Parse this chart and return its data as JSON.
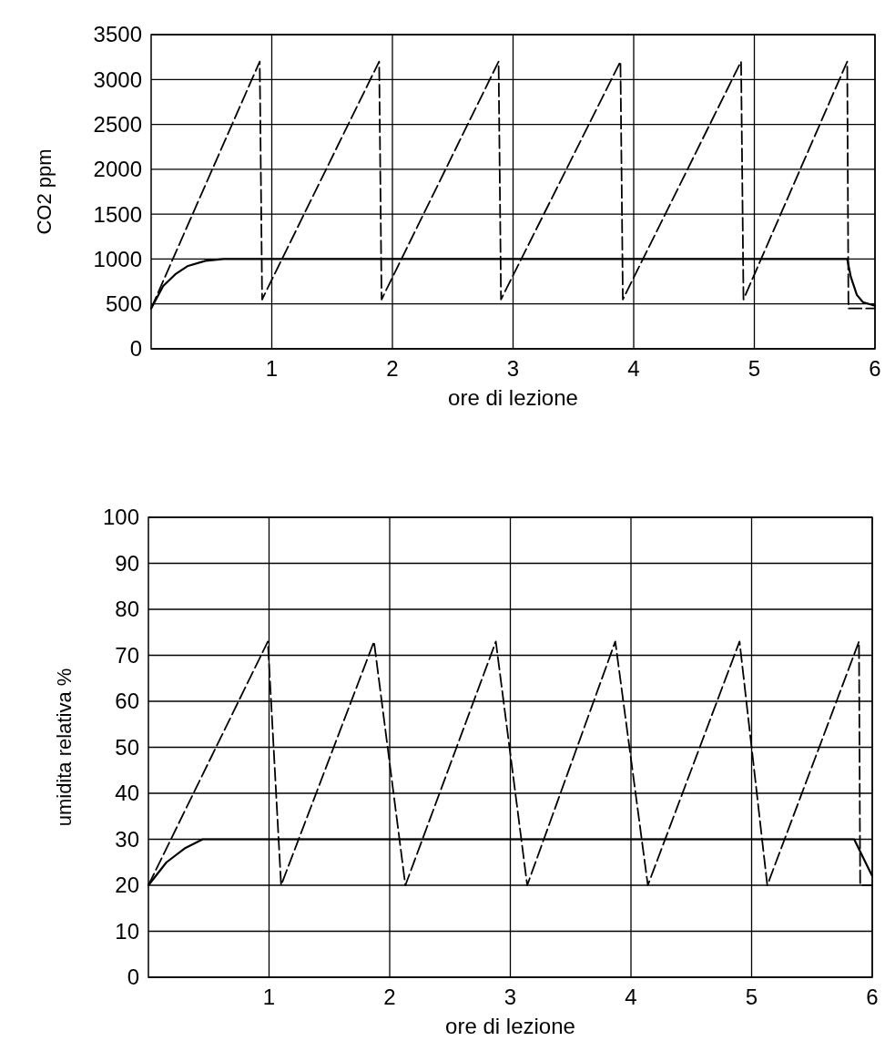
{
  "chart_data": [
    {
      "type": "line",
      "xlabel": "ore di lezione",
      "ylabel": "CO2 ppm",
      "xlim": [
        0,
        6
      ],
      "xticks": [
        1,
        2,
        3,
        4,
        5,
        6
      ],
      "ylim": [
        0,
        3500
      ],
      "yticks": [
        0,
        500,
        1000,
        1500,
        2000,
        2500,
        3000,
        3500
      ],
      "grid": true,
      "marker": "none",
      "series": [
        {
          "color": "#000000",
          "line_style": "dashed",
          "x": [
            0,
            0.9,
            0.92,
            1.89,
            1.91,
            2.88,
            2.9,
            3.89,
            3.91,
            4.89,
            4.91,
            5.77,
            5.78,
            6
          ],
          "values": [
            450,
            3200,
            550,
            3200,
            550,
            3200,
            550,
            3200,
            550,
            3200,
            550,
            3200,
            450,
            450
          ]
        },
        {
          "color": "#000000",
          "line_style": "solid",
          "x": [
            0,
            0.1,
            0.2,
            0.3,
            0.45,
            0.6,
            5.77,
            5.8,
            5.85,
            5.9,
            6
          ],
          "values": [
            450,
            700,
            830,
            920,
            980,
            1000,
            1000,
            800,
            600,
            520,
            480
          ]
        }
      ]
    },
    {
      "type": "line",
      "xlabel": "ore di lezione",
      "ylabel": "umidita relativa %",
      "xlim": [
        0,
        6
      ],
      "xticks": [
        1,
        2,
        3,
        4,
        5,
        6
      ],
      "ylim": [
        0,
        100
      ],
      "yticks": [
        0,
        10,
        20,
        30,
        40,
        50,
        60,
        70,
        80,
        90,
        100
      ],
      "grid": true,
      "marker": "none",
      "series": [
        {
          "color": "#000000",
          "line_style": "dashed",
          "x": [
            0,
            0.99,
            1.1,
            1.87,
            2.13,
            2.88,
            3.14,
            3.87,
            4.14,
            4.9,
            5.13,
            5.89,
            5.9,
            6
          ],
          "values": [
            20,
            73,
            20,
            73,
            20,
            73,
            20,
            73,
            20,
            73,
            20,
            73,
            20,
            20
          ]
        },
        {
          "color": "#000000",
          "line_style": "solid",
          "x": [
            0,
            0.15,
            0.3,
            0.45,
            0.6,
            5.85,
            6
          ],
          "values": [
            20,
            25,
            28,
            30,
            30,
            30,
            22
          ]
        }
      ]
    }
  ]
}
